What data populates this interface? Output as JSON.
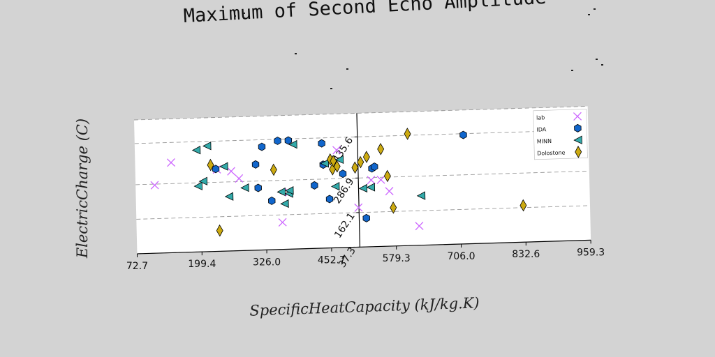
{
  "chart_data": {
    "type": "scatter",
    "title": "Maximum of Second Echo Amplitude",
    "xlabel": "SpecificHeatCapacity (kJ/kg.K)",
    "ylabel": "ElectricCharge (C)",
    "xlim": [
      72.7,
      959.3
    ],
    "ylim": [
      37.3,
      521.0
    ],
    "x_ticks": [
      "72.7",
      "199.4",
      "326.0",
      "452.7",
      "579.3",
      "706.0",
      "832.6",
      "959.3"
    ],
    "x_tick_values": [
      72.7,
      199.4,
      326.0,
      452.7,
      579.3,
      706.0,
      832.6,
      959.3
    ],
    "y_ticks": [
      "37.3",
      "162.1",
      "286.9",
      "435.6"
    ],
    "y_tick_values": [
      37.3,
      162.1,
      286.9,
      435.6
    ],
    "grid": "horizontal-dashed",
    "legend_position": "top-right",
    "series": [
      {
        "name": "lab",
        "marker": "x",
        "color": "#cc66ff",
        "points": [
          [
            110,
            283
          ],
          [
            143,
            363
          ],
          [
            232,
            333
          ],
          [
            260,
            325
          ],
          [
            275,
            298
          ],
          [
            358,
            135
          ],
          [
            372,
            243
          ],
          [
            467,
            390
          ],
          [
            507,
            180
          ],
          [
            533,
            278
          ],
          [
            552,
            278
          ],
          [
            568,
            236
          ],
          [
            625,
            107
          ],
          [
            944,
            405
          ]
        ]
      },
      {
        "name": "IDA",
        "marker": "hexagon",
        "color": "#1166cc",
        "points": [
          [
            230,
            335
          ],
          [
            308,
            347
          ],
          [
            312,
            262
          ],
          [
            321,
            410
          ],
          [
            338,
            214
          ],
          [
            352,
            430
          ],
          [
            373,
            430
          ],
          [
            422,
            265
          ],
          [
            438,
            416
          ],
          [
            440,
            339
          ],
          [
            451,
            214
          ],
          [
            478,
            304
          ],
          [
            522,
            141
          ],
          [
            535,
            320
          ],
          [
            540,
            326
          ],
          [
            715,
            431
          ]
        ]
      },
      {
        "name": "MINN",
        "marker": "triangle-left",
        "color": "#33aaaa",
        "points": [
          [
            193,
            405
          ],
          [
            195,
            275
          ],
          [
            205,
            292
          ],
          [
            214,
            419
          ],
          [
            246,
            343
          ],
          [
            255,
            234
          ],
          [
            286,
            264
          ],
          [
            357,
            245
          ],
          [
            363,
            202
          ],
          [
            372,
            238
          ],
          [
            373,
            249
          ],
          [
            382,
            415
          ],
          [
            443,
            343
          ],
          [
            463,
            259
          ],
          [
            472,
            355
          ],
          [
            517,
            249
          ],
          [
            532,
            252
          ],
          [
            630,
            216
          ]
        ]
      },
      {
        "name": "Dolostone",
        "marker": "diamond",
        "color": "#ccaa11",
        "points": [
          [
            220,
            350
          ],
          [
            235,
            112
          ],
          [
            343,
            326
          ],
          [
            454,
            357
          ],
          [
            458,
            321
          ],
          [
            460,
            351
          ],
          [
            467,
            331
          ],
          [
            502,
            325
          ],
          [
            513,
            344
          ],
          [
            525,
            362
          ],
          [
            553,
            389
          ],
          [
            565,
            291
          ],
          [
            575,
            176
          ],
          [
            606,
            441
          ],
          [
            829,
            170
          ]
        ]
      }
    ]
  }
}
